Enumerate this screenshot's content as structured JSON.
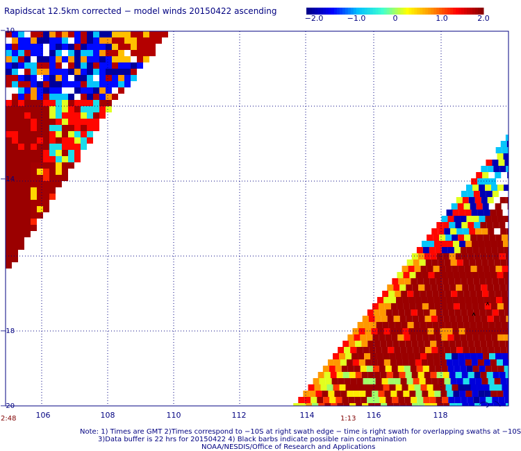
{
  "title": "Rapidscat 12.5km corrected − model winds 20150422 ascending",
  "colorbar": {
    "labels": [
      "−2.0",
      "−1.0",
      "0",
      "1.0",
      "2.0"
    ],
    "colors": [
      "#00008b",
      "#0000ff",
      "#00bfff",
      "#40ffd0",
      "#ffff00",
      "#ff8c00",
      "#ff0000",
      "#8b0000"
    ]
  },
  "axes": {
    "lat_labels": [
      "−10",
      "−14",
      "−18",
      "−20"
    ],
    "lon_labels": [
      "106",
      "108",
      "110",
      "112",
      "114",
      "116",
      "118"
    ]
  },
  "time_labels": {
    "left": "2:48",
    "middle": "1:13"
  },
  "notes": {
    "line1": "Note: 1) Times are GMT 2)Times correspond to −10S at right swath edge − time is right swath for overlapping swaths at −10S",
    "line2": "3)Data buffer is 22 hrs for 20150422 4) Black barbs indicate possible rain contamination",
    "line3": "NOAA/NESDIS/Office of Research and Applications"
  },
  "map_data": {
    "lat_range": [
      -20,
      -10
    ],
    "lon_range": [
      105,
      119.5
    ],
    "value_range": [
      -2.0,
      2.0
    ]
  }
}
